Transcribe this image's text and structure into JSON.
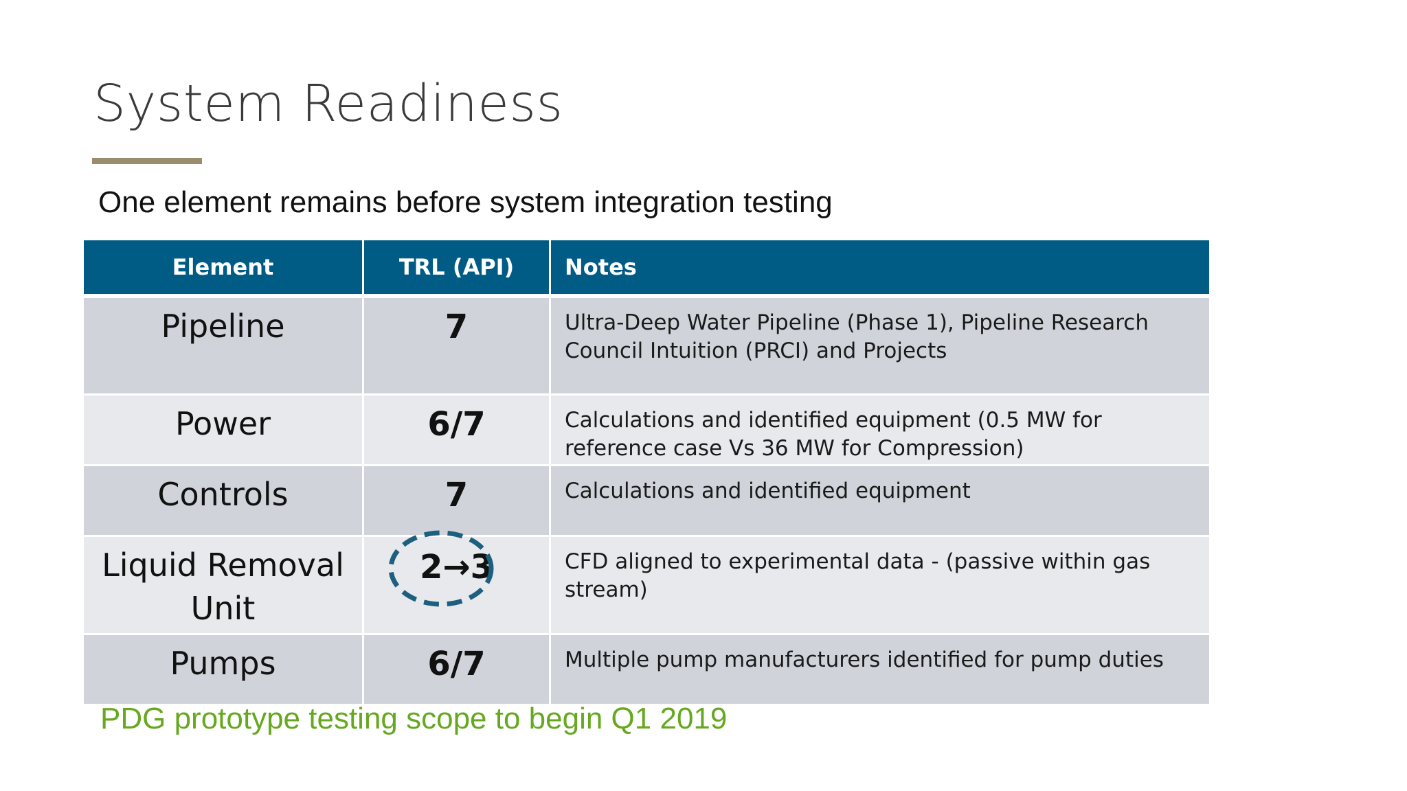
{
  "slide": {
    "title": "System Readiness",
    "subtitle": "One element remains before system integration testing",
    "footer_note": "PDG prototype testing scope to begin Q1 2019"
  },
  "table": {
    "headers": [
      "Element",
      "TRL (API)",
      "Notes"
    ],
    "rows": [
      {
        "element": "Pipeline",
        "trl": "7",
        "notes": "Ultra-Deep Water Pipeline (Phase 1), Pipeline Research Council Intuition (PRCI) and Projects"
      },
      {
        "element": "Power",
        "trl": "6/7",
        "notes": "Calculations and identified equipment (0.5 MW for reference case Vs 36 MW for Compression)"
      },
      {
        "element": "Controls",
        "trl": "7",
        "notes": "Calculations and identified equipment"
      },
      {
        "element": "Liquid Removal Unit",
        "trl": "2→3",
        "notes": "CFD aligned to experimental data - (passive within gas stream)"
      },
      {
        "element": "Pumps",
        "trl": "6/7",
        "notes": "Multiple pump manufacturers identified for pump duties"
      }
    ]
  },
  "colors": {
    "header_bg": "#005b85",
    "row_dark": "#d0d4da",
    "row_light": "#e8e9ed",
    "title_rule": "#9c8c6e",
    "footer_green": "#66a81f",
    "circle_stroke": "#1d5f7e"
  }
}
